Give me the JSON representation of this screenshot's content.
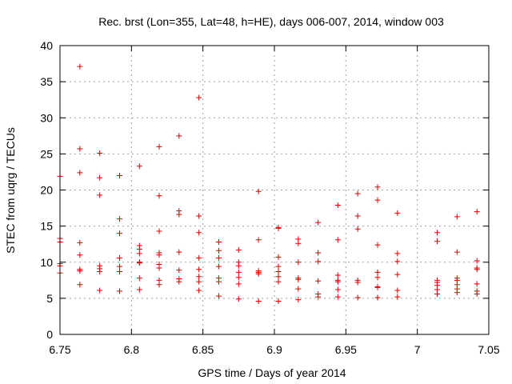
{
  "chart_data": {
    "type": "scatter",
    "title": "Rec. brst (Lon=355, Lat=48, h=HE), days 006-007, 2014, window 003",
    "xlabel": "GPS time / Days of year 2014",
    "ylabel": "STEC from uqrg / TECUs",
    "xlim": [
      6.75,
      7.05
    ],
    "ylim": [
      0,
      40
    ],
    "xticks": [
      6.75,
      6.8,
      6.85,
      6.9,
      6.95,
      7.0,
      7.05
    ],
    "xtick_labels": [
      "6.75",
      "6.8",
      "6.85",
      "6.9",
      "6.95",
      "7",
      "7.05"
    ],
    "yticks": [
      0,
      5,
      10,
      15,
      20,
      25,
      30,
      35,
      40
    ],
    "ytick_labels": [
      "0",
      "5",
      "10",
      "15",
      "20",
      "25",
      "30",
      "35",
      "40"
    ],
    "grid": true,
    "marker": "+",
    "color": "#e00000",
    "series": [
      {
        "name": "STEC",
        "points": [
          [
            6.75,
            21.9
          ],
          [
            6.75,
            13.3
          ],
          [
            6.75,
            12.8
          ],
          [
            6.75,
            9.8
          ],
          [
            6.75,
            9.5
          ],
          [
            6.75,
            8.5
          ],
          [
            6.7639,
            37.1
          ],
          [
            6.7639,
            25.7
          ],
          [
            6.7639,
            22.4
          ],
          [
            6.7639,
            12.7
          ],
          [
            6.7639,
            11.0
          ],
          [
            6.7639,
            9.0
          ],
          [
            6.7639,
            8.8
          ],
          [
            6.7639,
            6.9
          ],
          [
            6.7778,
            25.1
          ],
          [
            6.7778,
            21.7
          ],
          [
            6.7778,
            19.3
          ],
          [
            6.7778,
            9.5
          ],
          [
            6.7778,
            9.1
          ],
          [
            6.7778,
            8.7
          ],
          [
            6.7778,
            6.1
          ],
          [
            6.7917,
            22.0
          ],
          [
            6.7917,
            16.0
          ],
          [
            6.7917,
            14.0
          ],
          [
            6.7917,
            10.6
          ],
          [
            6.7917,
            9.4
          ],
          [
            6.7917,
            8.7
          ],
          [
            6.7917,
            6.0
          ],
          [
            6.8056,
            23.3
          ],
          [
            6.8056,
            12.3
          ],
          [
            6.8056,
            11.8
          ],
          [
            6.8056,
            11.2
          ],
          [
            6.8056,
            10.0
          ],
          [
            6.8056,
            9.9
          ],
          [
            6.8056,
            7.8
          ],
          [
            6.8056,
            6.2
          ],
          [
            6.8194,
            26.0
          ],
          [
            6.8194,
            19.2
          ],
          [
            6.8194,
            14.3
          ],
          [
            6.8194,
            11.3
          ],
          [
            6.8194,
            11.0
          ],
          [
            6.8194,
            9.7
          ],
          [
            6.8194,
            9.2
          ],
          [
            6.8194,
            7.5
          ],
          [
            6.8194,
            6.9
          ],
          [
            6.8333,
            27.5
          ],
          [
            6.8333,
            17.1
          ],
          [
            6.8333,
            16.6
          ],
          [
            6.8333,
            11.4
          ],
          [
            6.8333,
            8.9
          ],
          [
            6.8333,
            7.7
          ],
          [
            6.8333,
            7.3
          ],
          [
            6.8472,
            32.8
          ],
          [
            6.8472,
            16.4
          ],
          [
            6.8472,
            14.1
          ],
          [
            6.8472,
            10.6
          ],
          [
            6.8472,
            9.0
          ],
          [
            6.8472,
            8.0
          ],
          [
            6.8472,
            7.3
          ],
          [
            6.8472,
            6.1
          ],
          [
            6.8611,
            12.8
          ],
          [
            6.8611,
            11.6
          ],
          [
            6.8611,
            10.6
          ],
          [
            6.8611,
            9.4
          ],
          [
            6.8611,
            7.8
          ],
          [
            6.8611,
            7.3
          ],
          [
            6.8611,
            5.3
          ],
          [
            6.875,
            11.7
          ],
          [
            6.875,
            10.0
          ],
          [
            6.875,
            9.5
          ],
          [
            6.875,
            8.6
          ],
          [
            6.875,
            7.9
          ],
          [
            6.875,
            7.0
          ],
          [
            6.875,
            4.9
          ],
          [
            6.8889,
            19.8
          ],
          [
            6.8889,
            13.1
          ],
          [
            6.8889,
            8.8
          ],
          [
            6.8889,
            8.6
          ],
          [
            6.8889,
            8.4
          ],
          [
            6.8889,
            4.6
          ],
          [
            6.9028,
            14.8
          ],
          [
            6.9028,
            14.7
          ],
          [
            6.9028,
            10.7
          ],
          [
            6.9028,
            9.4
          ],
          [
            6.9028,
            8.7
          ],
          [
            6.9028,
            8.0
          ],
          [
            6.9028,
            7.3
          ],
          [
            6.9028,
            4.6
          ],
          [
            6.9167,
            13.2
          ],
          [
            6.9167,
            12.6
          ],
          [
            6.9167,
            10.0
          ],
          [
            6.9167,
            7.8
          ],
          [
            6.9167,
            7.6
          ],
          [
            6.9167,
            6.3
          ],
          [
            6.9167,
            4.8
          ],
          [
            6.9306,
            15.5
          ],
          [
            6.9306,
            11.3
          ],
          [
            6.9306,
            10.1
          ],
          [
            6.9306,
            7.4
          ],
          [
            6.9306,
            5.6
          ],
          [
            6.9306,
            5.2
          ],
          [
            6.9444,
            17.9
          ],
          [
            6.9444,
            13.1
          ],
          [
            6.9444,
            8.2
          ],
          [
            6.9444,
            7.5
          ],
          [
            6.9444,
            7.3
          ],
          [
            6.9444,
            6.2
          ],
          [
            6.9444,
            5.2
          ],
          [
            6.9583,
            19.5
          ],
          [
            6.9583,
            16.4
          ],
          [
            6.9583,
            14.6
          ],
          [
            6.9583,
            7.5
          ],
          [
            6.9583,
            7.2
          ],
          [
            6.9583,
            5.1
          ],
          [
            6.9722,
            20.4
          ],
          [
            6.9722,
            18.6
          ],
          [
            6.9722,
            12.4
          ],
          [
            6.9722,
            8.6
          ],
          [
            6.9722,
            7.9
          ],
          [
            6.9722,
            6.6
          ],
          [
            6.9722,
            6.5
          ],
          [
            6.9722,
            5.1
          ],
          [
            6.9861,
            16.8
          ],
          [
            6.9861,
            11.2
          ],
          [
            6.9861,
            10.1
          ],
          [
            6.9861,
            8.3
          ],
          [
            6.9861,
            6.1
          ],
          [
            6.9861,
            5.2
          ],
          [
            7.0139,
            14.1
          ],
          [
            7.0139,
            12.9
          ],
          [
            7.0139,
            7.5
          ],
          [
            7.0139,
            7.2
          ],
          [
            7.0139,
            6.8
          ],
          [
            7.0139,
            6.2
          ],
          [
            7.0139,
            5.6
          ],
          [
            7.0278,
            16.3
          ],
          [
            7.0278,
            11.4
          ],
          [
            7.0278,
            7.8
          ],
          [
            7.0278,
            7.5
          ],
          [
            7.0278,
            6.9
          ],
          [
            7.0278,
            6.3
          ],
          [
            7.0278,
            5.8
          ],
          [
            7.0417,
            17.0
          ],
          [
            7.0417,
            10.2
          ],
          [
            7.0417,
            9.2
          ],
          [
            7.0417,
            9.0
          ],
          [
            7.0417,
            7.0
          ],
          [
            7.0417,
            6.0
          ],
          [
            7.0417,
            5.6
          ]
        ]
      }
    ]
  }
}
